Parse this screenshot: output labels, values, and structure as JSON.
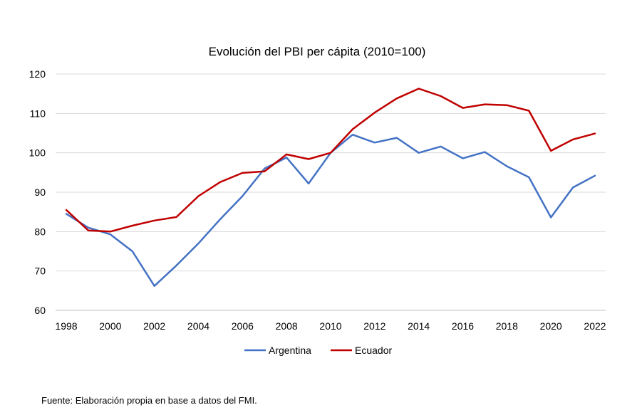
{
  "chart_data": {
    "type": "line",
    "title": "Evolución del PBI per cápita (2010=100)",
    "xlabel": "",
    "ylabel": "",
    "x": [
      1998,
      1999,
      2000,
      2001,
      2002,
      2003,
      2004,
      2005,
      2006,
      2007,
      2008,
      2009,
      2010,
      2011,
      2012,
      2013,
      2014,
      2015,
      2016,
      2017,
      2018,
      2019,
      2020,
      2021,
      2022
    ],
    "xticks": [
      "1998",
      "2000",
      "2002",
      "2004",
      "2006",
      "2008",
      "2010",
      "2012",
      "2014",
      "2016",
      "2018",
      "2020",
      "2022"
    ],
    "yticks": [
      "60",
      "70",
      "80",
      "90",
      "100",
      "110",
      "120"
    ],
    "ylim": [
      60,
      120
    ],
    "xlim": [
      1998,
      2022
    ],
    "grid": "horizontal",
    "legend_position": "bottom",
    "series": [
      {
        "name": "Argentina",
        "color": "#4472C4",
        "values": [
          84.5,
          81.0,
          79.3,
          75.0,
          66.2,
          71.4,
          77.0,
          83.2,
          89.0,
          96.0,
          98.8,
          92.2,
          100.0,
          104.6,
          102.6,
          103.8,
          100.0,
          101.6,
          98.6,
          100.2,
          96.6,
          93.8,
          83.6,
          91.2,
          94.2
        ]
      },
      {
        "name": "Ecuador",
        "color": "#C00000",
        "values": [
          85.5,
          80.3,
          80.0,
          81.5,
          82.8,
          83.7,
          89.0,
          92.6,
          94.9,
          95.3,
          99.6,
          98.4,
          100.0,
          106.0,
          110.2,
          113.8,
          116.3,
          114.4,
          111.4,
          112.3,
          112.1,
          110.7,
          100.5,
          103.4,
          104.9
        ]
      }
    ]
  },
  "colors": {
    "grid": "#D9D9D9",
    "axis": "#BFBFBF"
  },
  "footer": {
    "source": "Fuente: Elaboración propia en base a datos del FMI."
  }
}
